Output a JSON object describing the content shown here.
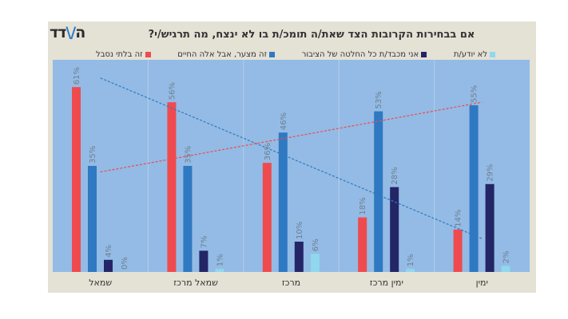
{
  "logo": "המדד",
  "chart_data": {
    "type": "bar",
    "title": "אם בבחירות הקרובות הצד שאת/ה תומכ/ת בו לא ינצח, מה תרגיש/י?",
    "categories": [
      "שמאל",
      "שמאל מרכז",
      "מרכז",
      "ימין מרכז",
      "ימין"
    ],
    "series": [
      {
        "name": "זה בלתי נסבל",
        "color": "#ef4b4f",
        "values": [
          61,
          56,
          36,
          18,
          14
        ]
      },
      {
        "name": "זה מצער, אבל אלה החיים",
        "color": "#2e79c2",
        "values": [
          35,
          35,
          46,
          53,
          55
        ]
      },
      {
        "name": "אני מכבד/ת כל החלטה של הציבור",
        "color": "#232566",
        "values": [
          4,
          7,
          10,
          28,
          29
        ]
      },
      {
        "name": "לא יודע/ת",
        "color": "#8fd8ee",
        "values": [
          0,
          1,
          6,
          1,
          2
        ]
      }
    ],
    "data_label_suffix": "%",
    "trendlines": [
      {
        "series": "זה בלתי נסבל",
        "color": "#2e79c2",
        "style": "dashed",
        "start": 64,
        "end": 11
      },
      {
        "series": "זה מצער, אבל אלה החיים",
        "color": "#ef4b4f",
        "style": "dashed",
        "start": 33,
        "end": 56
      }
    ],
    "ylim": [
      0,
      70
    ],
    "grid": "vertical category separators",
    "legend": "top",
    "background": "#93bbe5"
  }
}
